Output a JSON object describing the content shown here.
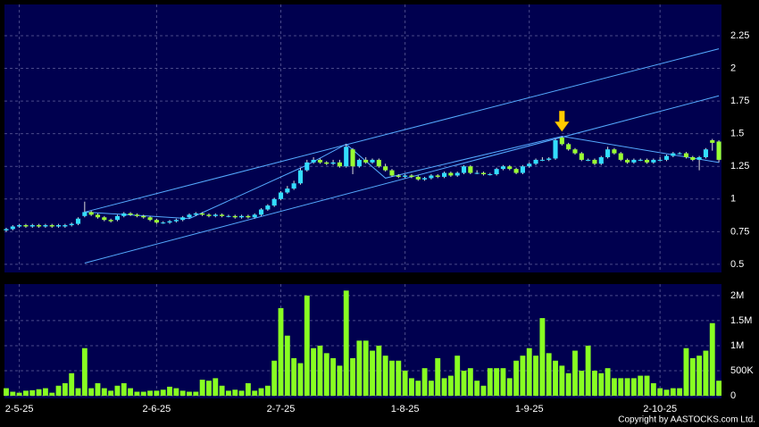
{
  "chart_data": [
    {
      "type": "candlestick",
      "xlim": [
        -0.27,
        109.4
      ],
      "ylim": [
        0.438,
        2.489
      ],
      "xticks": [
        {
          "value": 2,
          "label": "2-5-25"
        },
        {
          "value": 23,
          "label": "2-6-25"
        },
        {
          "value": 42,
          "label": "2-7-25"
        },
        {
          "value": 61,
          "label": "1-8-25"
        },
        {
          "value": 80,
          "label": "1-9-25"
        },
        {
          "value": 100,
          "label": "2-10-25"
        }
      ],
      "yticks": [
        0.5,
        0.75,
        1,
        1.25,
        1.5,
        1.75,
        2,
        2.25
      ],
      "grid": true,
      "up_color": "#33ddff",
      "down_color": "#99ff33",
      "wick_color": "#dddddd",
      "open": [
        0.76,
        0.77,
        0.79,
        0.8,
        0.79,
        0.8,
        0.79,
        0.8,
        0.79,
        0.79,
        0.8,
        0.81,
        0.87,
        0.9,
        0.88,
        0.86,
        0.84,
        0.84,
        0.87,
        0.89,
        0.88,
        0.87,
        0.86,
        0.84,
        0.82,
        0.82,
        0.83,
        0.84,
        0.86,
        0.88,
        0.89,
        0.88,
        0.87,
        0.88,
        0.87,
        0.87,
        0.86,
        0.87,
        0.86,
        0.88,
        0.92,
        0.95,
        1.0,
        1.05,
        1.08,
        1.12,
        1.22,
        1.28,
        1.3,
        1.28,
        1.27,
        1.28,
        1.25,
        1.38,
        1.25,
        1.3,
        1.28,
        1.3,
        1.25,
        1.22,
        1.18,
        1.17,
        1.18,
        1.17,
        1.15,
        1.16,
        1.18,
        1.17,
        1.2,
        1.18,
        1.2,
        1.25,
        1.2,
        1.2,
        1.19,
        1.19,
        1.23,
        1.25,
        1.23,
        1.2,
        1.25,
        1.27,
        1.3,
        1.3,
        1.31,
        1.47,
        1.42,
        1.38,
        1.35,
        1.3,
        1.3,
        1.27,
        1.32,
        1.38,
        1.35,
        1.3,
        1.28,
        1.3,
        1.3,
        1.28,
        1.3,
        1.3,
        1.33,
        1.35,
        1.35,
        1.32,
        1.3,
        1.32,
        1.45,
        1.44
      ],
      "high": [
        0.78,
        0.8,
        0.81,
        0.81,
        0.81,
        0.81,
        0.81,
        0.81,
        0.81,
        0.81,
        0.82,
        0.86,
        0.98,
        0.91,
        0.89,
        0.87,
        0.85,
        0.88,
        0.9,
        0.9,
        0.89,
        0.88,
        0.87,
        0.85,
        0.83,
        0.84,
        0.85,
        0.87,
        0.89,
        0.9,
        0.9,
        0.89,
        0.89,
        0.89,
        0.88,
        0.88,
        0.88,
        0.88,
        0.89,
        0.93,
        0.96,
        1.01,
        1.06,
        1.1,
        1.14,
        1.24,
        1.3,
        1.32,
        1.31,
        1.29,
        1.3,
        1.3,
        1.42,
        1.39,
        1.31,
        1.32,
        1.31,
        1.31,
        1.27,
        1.23,
        1.19,
        1.19,
        1.19,
        1.18,
        1.17,
        1.19,
        1.19,
        1.21,
        1.21,
        1.21,
        1.26,
        1.26,
        1.22,
        1.21,
        1.2,
        1.24,
        1.26,
        1.26,
        1.24,
        1.26,
        1.28,
        1.31,
        1.32,
        1.32,
        1.46,
        1.48,
        1.43,
        1.39,
        1.36,
        1.31,
        1.31,
        1.33,
        1.4,
        1.39,
        1.36,
        1.31,
        1.31,
        1.31,
        1.31,
        1.31,
        1.32,
        1.34,
        1.36,
        1.36,
        1.36,
        1.33,
        1.33,
        1.39,
        1.46,
        1.45
      ],
      "low": [
        0.75,
        0.76,
        0.78,
        0.78,
        0.78,
        0.78,
        0.78,
        0.78,
        0.78,
        0.78,
        0.79,
        0.8,
        0.86,
        0.87,
        0.85,
        0.83,
        0.82,
        0.83,
        0.86,
        0.87,
        0.86,
        0.85,
        0.83,
        0.81,
        0.81,
        0.81,
        0.82,
        0.83,
        0.85,
        0.87,
        0.87,
        0.86,
        0.86,
        0.86,
        0.86,
        0.85,
        0.85,
        0.85,
        0.85,
        0.87,
        0.91,
        0.94,
        0.99,
        1.04,
        1.07,
        1.11,
        1.21,
        1.27,
        1.27,
        1.26,
        1.26,
        1.24,
        1.24,
        1.19,
        1.24,
        1.27,
        1.27,
        1.24,
        1.21,
        1.17,
        1.16,
        1.16,
        1.16,
        1.14,
        1.14,
        1.15,
        1.16,
        1.16,
        1.17,
        1.17,
        1.19,
        1.19,
        1.19,
        1.18,
        1.18,
        1.18,
        1.22,
        1.22,
        1.19,
        1.19,
        1.24,
        1.26,
        1.29,
        1.29,
        1.3,
        1.41,
        1.37,
        1.34,
        1.29,
        1.29,
        1.26,
        1.26,
        1.31,
        1.34,
        1.29,
        1.27,
        1.27,
        1.29,
        1.27,
        1.27,
        1.29,
        1.29,
        1.32,
        1.34,
        1.31,
        1.29,
        1.22,
        1.31,
        1.37,
        1.28
      ],
      "close": [
        0.77,
        0.79,
        0.8,
        0.79,
        0.8,
        0.79,
        0.8,
        0.79,
        0.8,
        0.8,
        0.81,
        0.85,
        0.9,
        0.88,
        0.86,
        0.84,
        0.83,
        0.87,
        0.89,
        0.88,
        0.87,
        0.86,
        0.84,
        0.82,
        0.82,
        0.83,
        0.84,
        0.86,
        0.88,
        0.89,
        0.88,
        0.87,
        0.88,
        0.87,
        0.87,
        0.86,
        0.87,
        0.86,
        0.88,
        0.92,
        0.95,
        1.0,
        1.05,
        1.08,
        1.12,
        1.22,
        1.28,
        1.3,
        1.28,
        1.27,
        1.28,
        1.25,
        1.4,
        1.25,
        1.3,
        1.28,
        1.3,
        1.25,
        1.22,
        1.18,
        1.17,
        1.18,
        1.17,
        1.15,
        1.16,
        1.18,
        1.17,
        1.2,
        1.18,
        1.2,
        1.25,
        1.2,
        1.2,
        1.19,
        1.19,
        1.23,
        1.25,
        1.23,
        1.2,
        1.25,
        1.27,
        1.3,
        1.3,
        1.31,
        1.45,
        1.42,
        1.38,
        1.35,
        1.3,
        1.3,
        1.27,
        1.32,
        1.38,
        1.35,
        1.3,
        1.28,
        1.3,
        1.3,
        1.28,
        1.3,
        1.3,
        1.33,
        1.35,
        1.35,
        1.32,
        1.3,
        1.32,
        1.38,
        1.43,
        1.3
      ],
      "trendline_color": "#55aaff",
      "trendlines": [
        [
          [
            12,
            0.9
          ],
          [
            109,
            2.15
          ]
        ],
        [
          [
            12,
            0.51
          ],
          [
            109,
            1.79
          ]
        ],
        [
          [
            12,
            0.9
          ],
          [
            28,
            0.85
          ],
          [
            46,
            1.26
          ],
          [
            52,
            1.42
          ],
          [
            58,
            1.16
          ],
          [
            85,
            1.48
          ],
          [
            109,
            1.28
          ]
        ]
      ],
      "marker": {
        "index": 85,
        "price": 1.51,
        "color": "#ffcc00"
      }
    },
    {
      "type": "bar",
      "xlim": [
        -0.27,
        109.4
      ],
      "ylim": [
        0,
        2230000
      ],
      "color": "#88ff22",
      "grid": true,
      "xticks": [
        2,
        23,
        42,
        61,
        80,
        100
      ],
      "yticks": [
        0,
        {
          "value": 500000,
          "label": "500K"
        },
        {
          "value": 1000000,
          "label": "1M"
        },
        {
          "value": 1500000,
          "label": "1.5M"
        },
        {
          "value": 2000000,
          "label": "2M"
        }
      ],
      "values": [
        150000,
        80000,
        60000,
        100000,
        110000,
        130000,
        150000,
        60000,
        200000,
        250000,
        450000,
        150000,
        950000,
        150000,
        250000,
        150000,
        100000,
        200000,
        250000,
        150000,
        80000,
        80000,
        100000,
        100000,
        120000,
        180000,
        150000,
        100000,
        80000,
        80000,
        320000,
        300000,
        350000,
        200000,
        100000,
        120000,
        100000,
        250000,
        100000,
        150000,
        200000,
        700000,
        1750000,
        1200000,
        750000,
        650000,
        2000000,
        950000,
        1000000,
        850000,
        750000,
        600000,
        2100000,
        750000,
        1100000,
        1100000,
        900000,
        1000000,
        800000,
        700000,
        700000,
        500000,
        350000,
        300000,
        550000,
        300000,
        750000,
        350000,
        400000,
        800000,
        500000,
        550000,
        300000,
        200000,
        550000,
        550000,
        550000,
        350000,
        700000,
        800000,
        950000,
        800000,
        1550000,
        850000,
        700000,
        600000,
        450000,
        900000,
        500000,
        1000000,
        500000,
        450000,
        550000,
        350000,
        350000,
        350000,
        350000,
        400000,
        400000,
        250000,
        150000,
        120000,
        150000,
        150000,
        950000,
        750000,
        800000,
        900000,
        1450000,
        300000
      ]
    }
  ],
  "footer": "Copyright by AASTOCKS.com Ltd."
}
